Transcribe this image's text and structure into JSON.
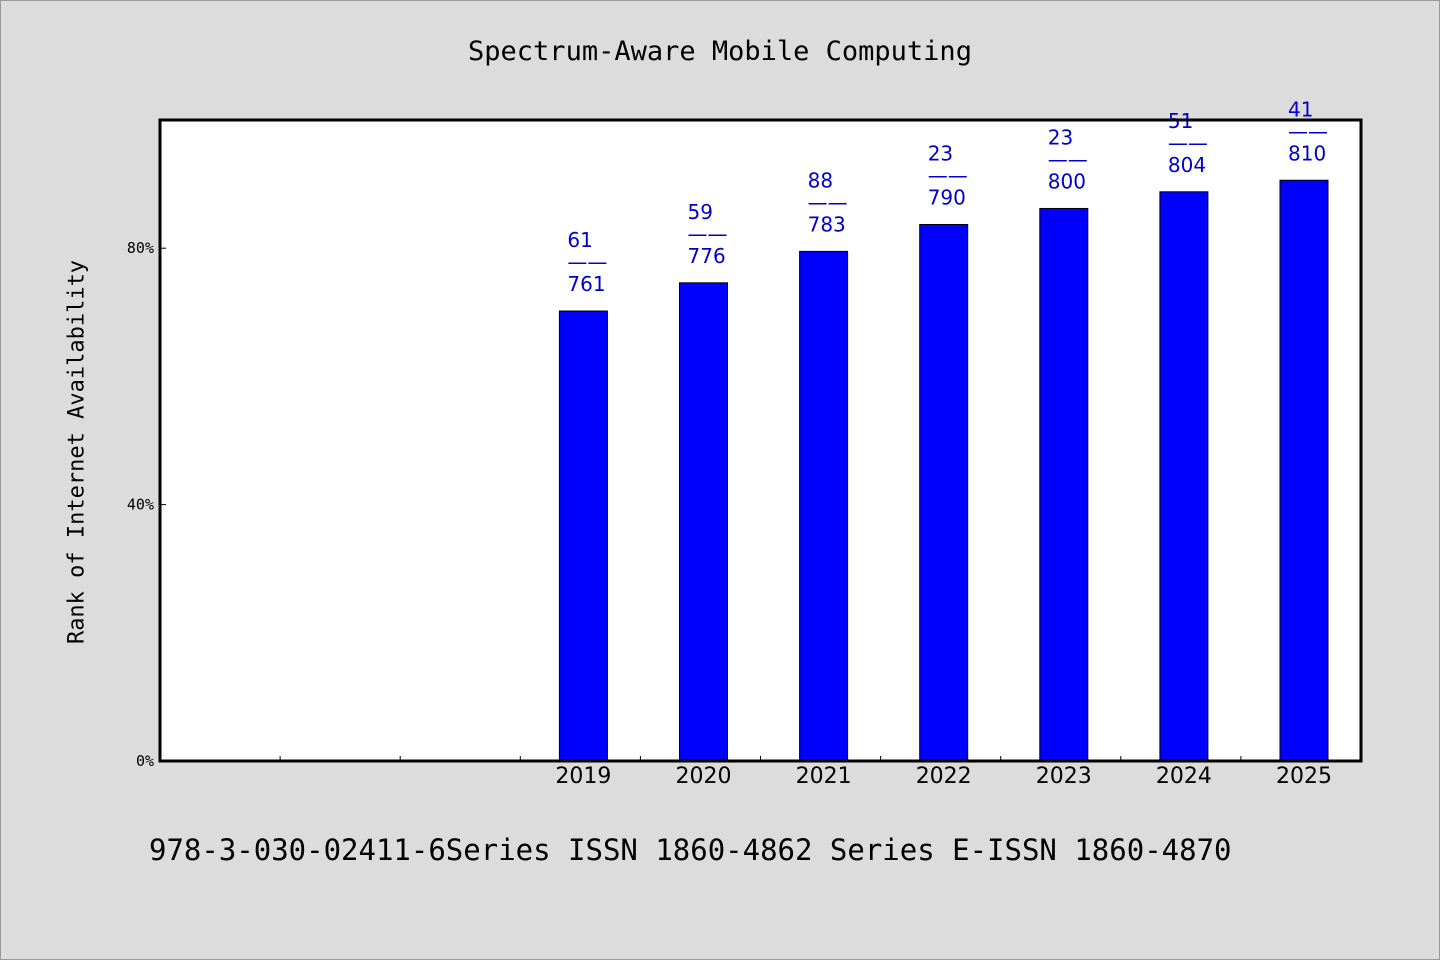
{
  "colors": {
    "background": "#dcdcdc",
    "plot_background": "#ffffff",
    "bar": "#0000ff",
    "data_label": "#0000cc"
  },
  "chart_data": {
    "type": "bar",
    "title": "Spectrum-Aware Mobile Computing",
    "xlabel": "",
    "ylabel": "Rank of Internet Availability",
    "categories": [
      "",
      "",
      "",
      "2019",
      "2020",
      "2021",
      "2022",
      "2023",
      "2024",
      "2025"
    ],
    "values": [
      null,
      null,
      null,
      70.2,
      74.6,
      79.5,
      83.7,
      86.2,
      88.8,
      90.6
    ],
    "data_labels": [
      null,
      null,
      null,
      [
        "61",
        "——",
        "761"
      ],
      [
        "59",
        "——",
        "776"
      ],
      [
        "88",
        "——",
        "783"
      ],
      [
        "23",
        "——",
        "790"
      ],
      [
        "23",
        "——",
        "800"
      ],
      [
        "51",
        "——",
        "804"
      ],
      [
        "41",
        "——",
        "810"
      ]
    ],
    "ylim": [
      0,
      100
    ],
    "yticks": [
      {
        "value": 0,
        "label": "0%"
      },
      {
        "value": 40,
        "label": "40%"
      },
      {
        "value": 80,
        "label": "80%"
      }
    ],
    "grid": false,
    "legend": "none"
  },
  "footer": {
    "text": "978-3-030-02411-6Series ISSN 1860-4862 Series E-ISSN 1860-4870"
  }
}
